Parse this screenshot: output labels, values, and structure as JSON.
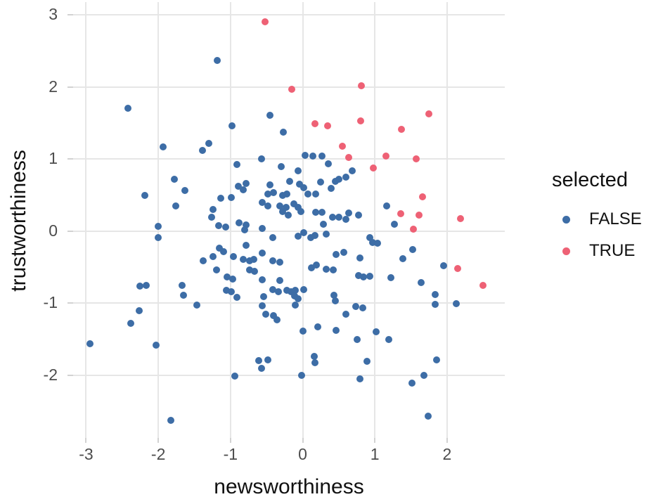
{
  "figure": {
    "xlabel": "newsworthiness",
    "ylabel": "trustworthiness"
  },
  "legend": {
    "title": "selected",
    "entries": [
      {
        "label": "FALSE",
        "color": "#3d6da6"
      },
      {
        "label": "TRUE",
        "color": "#ee6175"
      }
    ]
  },
  "colors": {
    "false_point": "#3d6da6",
    "true_point": "#ee6175",
    "gridline": "#e6e6e6",
    "tick_text": "#4d4d4d",
    "background": "#ffffff"
  },
  "chart_data": {
    "type": "scatter",
    "title": "",
    "xlabel": "newsworthiness",
    "ylabel": "trustworthiness",
    "grid": true,
    "legend_position": "right",
    "legend_title": "selected",
    "xlim": [
      -3.18,
      2.8
    ],
    "ylim": [
      -2.87,
      3.18
    ],
    "x_ticks": [
      -3,
      -2,
      -1,
      0,
      1,
      2
    ],
    "y_ticks": [
      3,
      2,
      1,
      0,
      -1,
      -2
    ],
    "series": [
      {
        "name": "FALSE",
        "color": "#3d6da6",
        "points": [
          [
            -2.42,
            1.71
          ],
          [
            -1.93,
            1.17
          ],
          [
            -1.39,
            1.12
          ],
          [
            -1.3,
            1.22
          ],
          [
            -1.18,
            2.37
          ],
          [
            -0.45,
            1.61
          ],
          [
            -0.98,
            1.46
          ],
          [
            -0.27,
            1.37
          ],
          [
            0.03,
            1.05
          ],
          [
            0.14,
            1.04
          ],
          [
            0.27,
            1.04
          ],
          [
            -0.57,
            1.0
          ],
          [
            0.36,
            0.94
          ],
          [
            -2.19,
            0.5
          ],
          [
            -1.78,
            0.72
          ],
          [
            -1.63,
            0.56
          ],
          [
            -1.76,
            0.35
          ],
          [
            -2.0,
            0.07
          ],
          [
            -2.0,
            -0.09
          ],
          [
            -1.38,
            -0.41
          ],
          [
            -2.25,
            -0.76
          ],
          [
            -2.17,
            -0.75
          ],
          [
            -1.67,
            -0.75
          ],
          [
            -1.65,
            -0.89
          ],
          [
            -1.47,
            -1.03
          ],
          [
            -2.26,
            -1.1
          ],
          [
            -0.91,
            0.93
          ],
          [
            -0.3,
            0.9
          ],
          [
            -0.06,
            0.84
          ],
          [
            0.69,
            0.84
          ],
          [
            -0.89,
            0.62
          ],
          [
            -0.78,
            0.66
          ],
          [
            -0.82,
            0.57
          ],
          [
            -0.45,
            0.64
          ],
          [
            -0.48,
            0.52
          ],
          [
            -0.4,
            0.54
          ],
          [
            -0.28,
            0.5
          ],
          [
            -0.22,
            0.52
          ],
          [
            -0.18,
            0.69
          ],
          [
            -0.04,
            0.65
          ],
          [
            0.01,
            0.6
          ],
          [
            0.25,
            0.68
          ],
          [
            0.45,
            0.69
          ],
          [
            0.5,
            0.72
          ],
          [
            0.6,
            0.75
          ],
          [
            0.39,
            0.59
          ],
          [
            0.07,
            0.52
          ],
          [
            0.18,
            0.52
          ],
          [
            -1.13,
            0.46
          ],
          [
            -0.99,
            0.47
          ],
          [
            -0.56,
            0.4
          ],
          [
            -0.48,
            0.35
          ],
          [
            -0.32,
            0.35
          ],
          [
            -0.28,
            0.27
          ],
          [
            -0.23,
            0.33
          ],
          [
            -0.12,
            0.38
          ],
          [
            -0.06,
            0.33
          ],
          [
            -0.02,
            0.27
          ],
          [
            -0.2,
            0.22
          ],
          [
            0.18,
            0.26
          ],
          [
            0.27,
            0.26
          ],
          [
            0.41,
            0.19
          ],
          [
            0.5,
            0.19
          ],
          [
            0.64,
            0.25
          ],
          [
            0.6,
            0.16
          ],
          [
            0.77,
            0.22
          ],
          [
            0.29,
            0.1
          ],
          [
            -1.24,
            0.3
          ],
          [
            -1.26,
            0.19
          ],
          [
            -1.16,
            0.08
          ],
          [
            -1.07,
            0.06
          ],
          [
            -0.88,
            0.12
          ],
          [
            -0.78,
            0.09
          ],
          [
            -0.8,
            0.02
          ],
          [
            -0.56,
            0.04
          ],
          [
            1.16,
            0.35
          ],
          [
            1.27,
            0.1
          ],
          [
            -0.41,
            -0.09
          ],
          [
            -0.06,
            -0.07
          ],
          [
            0.01,
            -0.02
          ],
          [
            0.11,
            -0.09
          ],
          [
            0.17,
            -0.06
          ],
          [
            0.33,
            -0.04
          ],
          [
            -0.78,
            -0.2
          ],
          [
            -1.15,
            -0.24
          ],
          [
            -1.1,
            -0.28
          ],
          [
            -1.24,
            -0.35
          ],
          [
            -0.96,
            -0.35
          ],
          [
            -0.82,
            -0.39
          ],
          [
            -0.74,
            -0.41
          ],
          [
            -0.68,
            -0.39
          ],
          [
            -0.56,
            -0.3
          ],
          [
            -0.41,
            -0.41
          ],
          [
            -0.32,
            -0.43
          ],
          [
            0.93,
            -0.09
          ],
          [
            0.97,
            -0.16
          ],
          [
            1.04,
            -0.17
          ],
          [
            0.12,
            -0.51
          ],
          [
            0.19,
            -0.47
          ],
          [
            0.33,
            -0.53
          ],
          [
            0.42,
            -0.54
          ],
          [
            0.46,
            -0.32
          ],
          [
            0.57,
            -0.29
          ],
          [
            0.79,
            -0.37
          ],
          [
            -0.74,
            -0.54
          ],
          [
            -0.67,
            -0.56
          ],
          [
            -1.05,
            -0.64
          ],
          [
            -0.97,
            -0.66
          ],
          [
            -1.19,
            -0.54
          ],
          [
            -0.56,
            -0.67
          ],
          [
            -0.32,
            -0.68
          ],
          [
            1.52,
            -0.25
          ],
          [
            1.39,
            -0.38
          ],
          [
            1.95,
            -0.48
          ],
          [
            -0.41,
            -0.81
          ],
          [
            -0.34,
            -0.84
          ],
          [
            -0.22,
            -0.82
          ],
          [
            -0.16,
            -0.84
          ],
          [
            -0.1,
            -0.82
          ],
          [
            0.01,
            -0.81
          ],
          [
            -1.06,
            -0.82
          ],
          [
            -0.99,
            -0.84
          ],
          [
            -0.91,
            -0.92
          ],
          [
            0.43,
            -0.89
          ],
          [
            0.45,
            -0.97
          ],
          [
            0.77,
            -0.62
          ],
          [
            0.84,
            -0.64
          ],
          [
            0.93,
            -0.63
          ],
          [
            -0.11,
            -0.9
          ],
          [
            -0.06,
            -0.94
          ],
          [
            -0.54,
            -0.91
          ],
          [
            -0.56,
            -1.04
          ],
          [
            -0.1,
            -1.03
          ],
          [
            1.22,
            -0.65
          ],
          [
            1.64,
            -0.71
          ],
          [
            1.84,
            -0.88
          ],
          [
            1.84,
            -1.02
          ],
          [
            2.13,
            -1.01
          ],
          [
            -0.51,
            -1.15
          ],
          [
            -0.4,
            -1.17
          ],
          [
            -0.36,
            -1.23
          ],
          [
            0.0,
            -1.39
          ],
          [
            0.21,
            -1.33
          ],
          [
            0.46,
            -1.38
          ],
          [
            0.6,
            -1.15
          ],
          [
            0.74,
            -1.05
          ],
          [
            0.83,
            -1.06
          ],
          [
            0.75,
            -1.5
          ],
          [
            0.16,
            -1.74
          ],
          [
            0.17,
            -1.83
          ],
          [
            -0.61,
            -1.8
          ],
          [
            -0.48,
            -1.79
          ],
          [
            -0.57,
            -1.9
          ],
          [
            -0.94,
            -2.01
          ],
          [
            -0.01,
            -2.0
          ],
          [
            0.79,
            -2.05
          ],
          [
            -2.38,
            -1.28
          ],
          [
            -2.95,
            -1.56
          ],
          [
            -2.03,
            -1.58
          ],
          [
            -1.83,
            -2.63
          ],
          [
            1.02,
            -1.4
          ],
          [
            1.19,
            -1.5
          ],
          [
            0.89,
            -1.81
          ],
          [
            1.86,
            -1.79
          ],
          [
            1.68,
            -2.0
          ],
          [
            1.51,
            -2.11
          ],
          [
            1.74,
            -2.57
          ]
        ]
      },
      {
        "name": "TRUE",
        "color": "#ee6175",
        "points": [
          [
            -0.52,
            2.91
          ],
          [
            -0.15,
            1.97
          ],
          [
            0.81,
            2.02
          ],
          [
            0.17,
            1.49
          ],
          [
            0.35,
            1.46
          ],
          [
            0.8,
            1.53
          ],
          [
            0.55,
            1.18
          ],
          [
            0.64,
            1.02
          ],
          [
            1.75,
            1.63
          ],
          [
            0.98,
            0.88
          ],
          [
            1.37,
            1.41
          ],
          [
            1.15,
            1.04
          ],
          [
            1.57,
            1.0
          ],
          [
            1.66,
            0.48
          ],
          [
            1.36,
            0.24
          ],
          [
            1.61,
            0.22
          ],
          [
            1.53,
            0.03
          ],
          [
            2.19,
            0.17
          ],
          [
            2.15,
            -0.52
          ],
          [
            2.5,
            -0.75
          ]
        ]
      }
    ]
  }
}
